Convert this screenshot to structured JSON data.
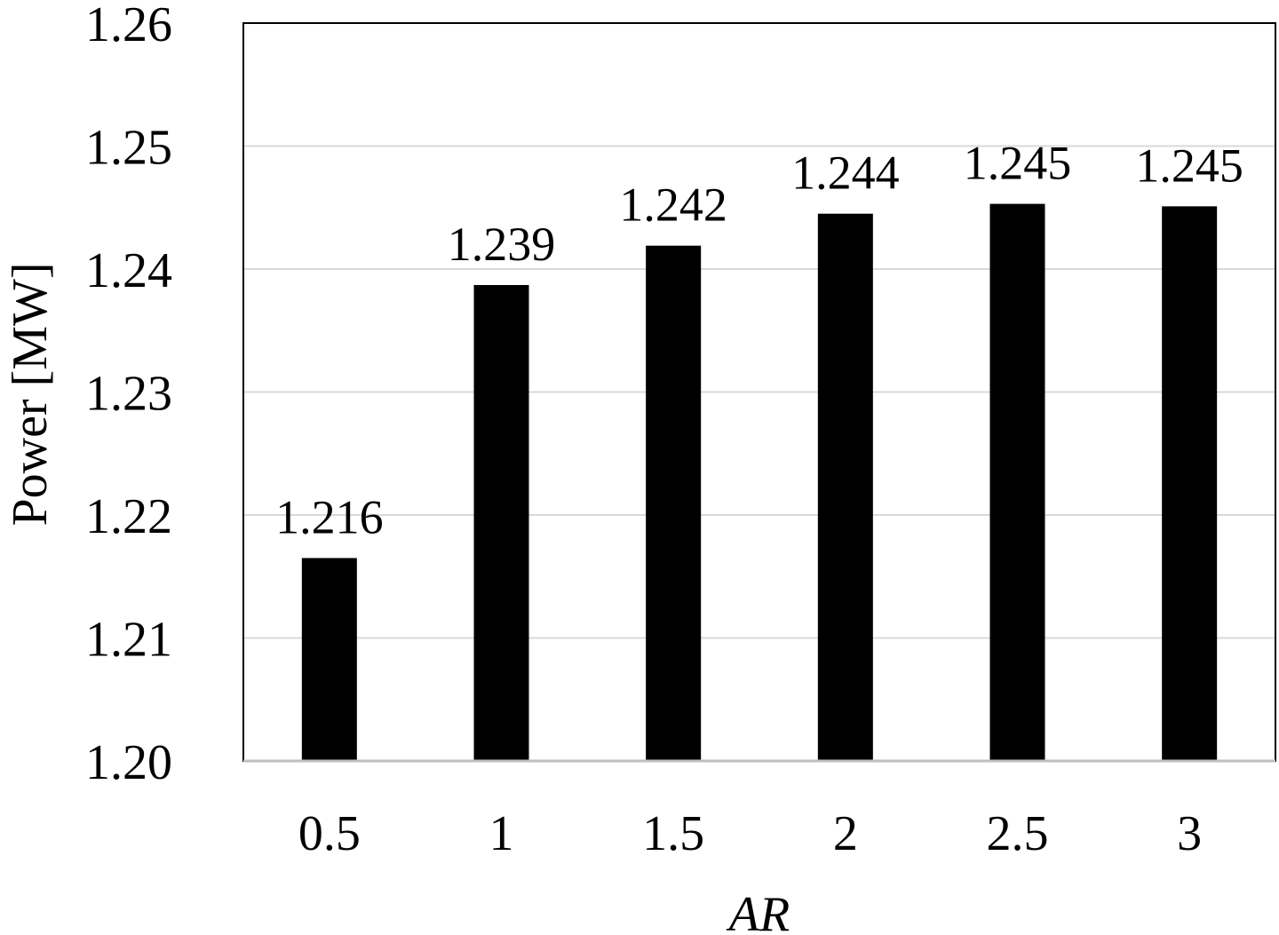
{
  "chart_data": {
    "type": "bar",
    "title": "",
    "xlabel": "AR",
    "ylabel": "Power [MW]",
    "categories": [
      "0.5",
      "1",
      "1.5",
      "2",
      "2.5",
      "3"
    ],
    "values": [
      1.2165,
      1.2387,
      1.2419,
      1.2445,
      1.2453,
      1.2451
    ],
    "data_labels": [
      "1.216",
      "1.239",
      "1.242",
      "1.244",
      "1.245",
      "1.245"
    ],
    "ylim": [
      1.2,
      1.26
    ],
    "yticks": [
      1.2,
      1.21,
      1.22,
      1.23,
      1.24,
      1.25,
      1.26
    ],
    "ytick_labels": [
      "1.20",
      "1.21",
      "1.22",
      "1.23",
      "1.24",
      "1.25",
      "1.26"
    ],
    "grid": true,
    "legend": "none",
    "colors": {
      "bar": "#000000",
      "grid": "#d9d9d9",
      "frame": "#000000"
    }
  }
}
